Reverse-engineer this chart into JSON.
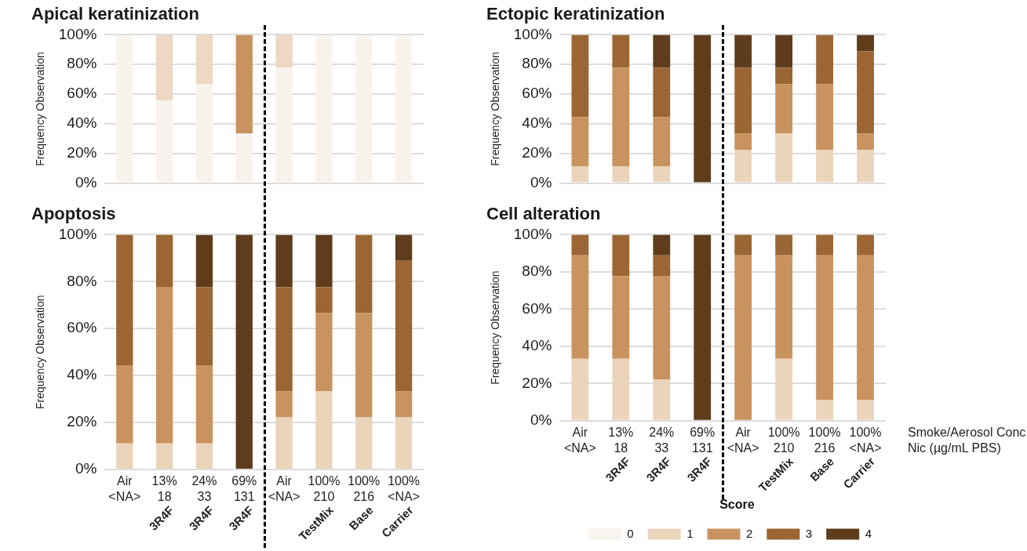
{
  "chart_data": [
    {
      "type": "bar",
      "stacked": true,
      "title": "Apical keratinization",
      "ylabel": "Frequency Observation",
      "categories": [
        null,
        null,
        null,
        null,
        null,
        null,
        null,
        null
      ],
      "tick_labels": "y",
      "grid": "y",
      "ylim": [
        0,
        100
      ],
      "yticks": [
        {
          "value": 0,
          "label": "0%"
        },
        {
          "value": 20,
          "label": "20%"
        },
        {
          "value": 40,
          "label": "40%"
        },
        {
          "value": 60,
          "label": "60%"
        },
        {
          "value": 80,
          "label": "80%"
        },
        {
          "value": 100,
          "label": "100%"
        }
      ],
      "series": [
        {
          "color": "#f9f3ee",
          "values": [
            100,
            55.6,
            66.7,
            33.3,
            77.8,
            100,
            100,
            100
          ]
        },
        {
          "color": "#eed8c3",
          "values": [
            0,
            44.4,
            33.3,
            0,
            22.2,
            0,
            0,
            0
          ]
        },
        {
          "color": "#c9935f",
          "values": [
            0,
            0,
            0,
            66.7,
            0,
            0,
            0,
            0
          ]
        }
      ]
    },
    {
      "type": "bar",
      "stacked": true,
      "title": "Ectopic keratinization",
      "ylabel": "Frequency Observation",
      "categories": [
        null,
        null,
        null,
        null,
        null,
        null,
        null,
        null
      ],
      "tick_labels": "y",
      "grid": "y",
      "ylim": [
        0,
        100
      ],
      "yticks": [
        {
          "value": 0,
          "label": "0%"
        },
        {
          "value": 20,
          "label": "20%"
        },
        {
          "value": 40,
          "label": "40%"
        },
        {
          "value": 60,
          "label": "60%"
        },
        {
          "value": 80,
          "label": "80%"
        },
        {
          "value": 100,
          "label": "100%"
        }
      ],
      "series": [
        {
          "color": "#ecd4ba",
          "values": [
            11.1,
            11.1,
            11.1,
            0,
            22.2,
            33.3,
            22.2,
            22.2
          ]
        },
        {
          "color": "#c9935f",
          "values": [
            33.3,
            66.7,
            33.3,
            0,
            11.1,
            33.3,
            44.4,
            11.1
          ]
        },
        {
          "color": "#9b6633",
          "values": [
            55.6,
            22.2,
            33.3,
            0,
            44.4,
            11.1,
            33.3,
            55.6
          ]
        },
        {
          "color": "#5f3d1c",
          "values": [
            0,
            0,
            22.2,
            100,
            22.2,
            22.2,
            0,
            11.1
          ]
        }
      ]
    },
    {
      "type": "bar",
      "stacked": true,
      "title": "Apoptosis",
      "ylabel": "Frequency Observation",
      "categories": [
        "Air\n<NA>",
        "13%\n18\n3R4F",
        "24%\n33\n3R4F",
        "69%\n131\n3R4F",
        "Air\n<NA>",
        "100%\n210\nTestMix",
        "100%\n216\nBase",
        "100%\n<NA>\nCarrier"
      ],
      "grid": "y",
      "ylim": [
        0,
        100
      ],
      "yticks": [
        {
          "value": 0,
          "label": "0%"
        },
        {
          "value": 20,
          "label": "20%"
        },
        {
          "value": 40,
          "label": "40%"
        },
        {
          "value": 60,
          "label": "60%"
        },
        {
          "value": 80,
          "label": "80%"
        },
        {
          "value": 100,
          "label": "100%"
        }
      ],
      "series": [
        {
          "color": "#ecd4ba",
          "values": [
            11.1,
            11.1,
            11.1,
            0,
            22.2,
            33.3,
            22.2,
            22.2
          ]
        },
        {
          "color": "#c9935f",
          "values": [
            33.3,
            66.7,
            33.3,
            0,
            11.1,
            33.3,
            44.4,
            11.1
          ]
        },
        {
          "color": "#9b6633",
          "values": [
            55.6,
            22.2,
            33.3,
            0,
            44.4,
            11.1,
            33.3,
            55.6
          ]
        },
        {
          "color": "#5f3d1c",
          "values": [
            0,
            0,
            22.2,
            100,
            22.2,
            22.2,
            0,
            11.1
          ]
        }
      ]
    },
    {
      "type": "bar",
      "stacked": true,
      "title": "Cell alteration",
      "ylabel": "Frequency Observation",
      "categories": [
        "Air\n<NA>",
        "13%\n18\n3R4F",
        "24%\n33\n3R4F",
        "69%\n131\n3R4F",
        "Air\n<NA>",
        "100%\n210\nTestMix",
        "100%\n216\nBase",
        "100%\n<NA>\nCarrier"
      ],
      "grid": "y",
      "ylim": [
        0,
        100
      ],
      "yticks": [
        {
          "value": 0,
          "label": "0%"
        },
        {
          "value": 20,
          "label": "20%"
        },
        {
          "value": 40,
          "label": "40%"
        },
        {
          "value": 60,
          "label": "60%"
        },
        {
          "value": 80,
          "label": "80%"
        },
        {
          "value": 100,
          "label": "100%"
        }
      ],
      "annotations": [
        "Smoke/Aerosol Conc.",
        "Nic (µg/mL PBS)"
      ],
      "legend": "bottom right",
      "legend_title": "Score",
      "series": [
        {
          "name": "0",
          "color": "#f9f3ee",
          "values": [
            0,
            0,
            0,
            0,
            0,
            0,
            0,
            0
          ]
        },
        {
          "name": "1",
          "color": "#ecd4ba",
          "values": [
            33.3,
            33.3,
            22.2,
            0,
            0,
            33.3,
            11.1,
            11.1
          ]
        },
        {
          "name": "2",
          "color": "#c9935f",
          "values": [
            55.6,
            44.4,
            55.6,
            0,
            88.9,
            55.6,
            77.8,
            77.8
          ]
        },
        {
          "name": "3",
          "color": "#9b6633",
          "values": [
            11.1,
            22.2,
            11.1,
            0,
            11.1,
            11.1,
            11.1,
            11.1
          ]
        },
        {
          "name": "4",
          "color": "#5f3d1c",
          "values": [
            0,
            0,
            11.1,
            100,
            0,
            0,
            0,
            0
          ]
        }
      ]
    }
  ]
}
